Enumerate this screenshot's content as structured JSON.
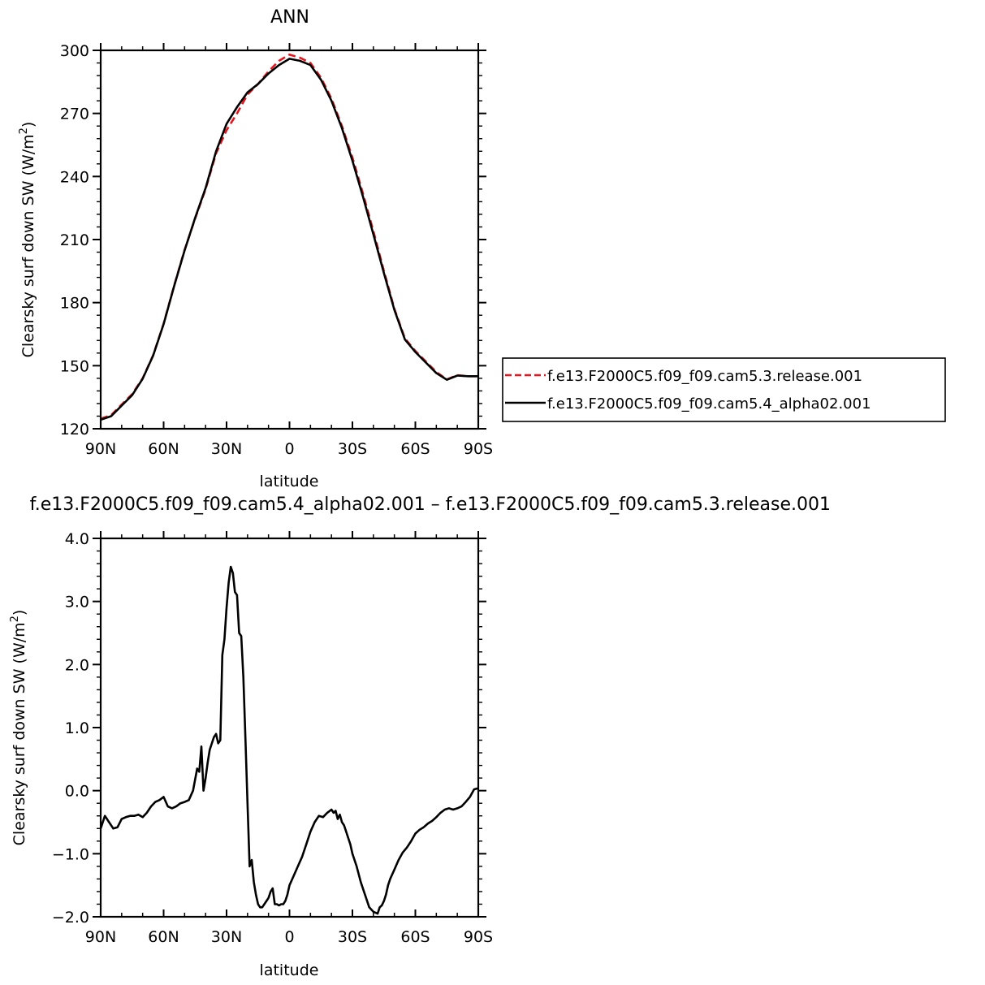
{
  "chart_data": [
    {
      "type": "line",
      "title": "ANN",
      "xlabel": "latitude",
      "ylabel": "Clearsky surf down SW (W/m²)",
      "ylabel_text": "Clearsky surf down SW (W/m",
      "ylabel_sup": "2",
      "ylabel_close": ")",
      "xlim": [
        90,
        -90
      ],
      "ylim": [
        120,
        300
      ],
      "x_ticks": [
        90,
        60,
        30,
        0,
        -30,
        -60,
        -90
      ],
      "x_tick_labels": [
        "90N",
        "60N",
        "30N",
        "0",
        "30S",
        "60S",
        "90S"
      ],
      "y_ticks": [
        120,
        150,
        180,
        210,
        240,
        270,
        300
      ],
      "y_tick_labels": [
        "120",
        "150",
        "180",
        "210",
        "240",
        "270",
        "300"
      ],
      "legend_position": "right",
      "series": [
        {
          "name": "f.e13.F2000C5.f09_f09.cam5.3.release.001",
          "color": "#e8141c",
          "dash": "dashed",
          "x": [
            90,
            85,
            80,
            75,
            70,
            65,
            60,
            55,
            50,
            45,
            40,
            35,
            30,
            25,
            20,
            15,
            10,
            5,
            0,
            -5,
            -10,
            -15,
            -20,
            -25,
            -30,
            -35,
            -40,
            -45,
            -50,
            -55,
            -60,
            -65,
            -70,
            -75,
            -80,
            -85,
            -90
          ],
          "y": [
            124.8,
            126.5,
            131.5,
            136.5,
            144,
            155,
            170,
            188,
            205,
            220,
            234,
            251,
            262,
            270,
            279,
            284,
            290,
            295,
            298,
            296.5,
            294,
            287,
            277,
            264,
            249,
            232,
            214,
            195,
            177,
            163,
            157,
            152,
            147,
            143.5,
            145.5,
            145,
            145
          ]
        },
        {
          "name": "f.e13.F2000C5.f09_f09.cam5.4_alpha02.001",
          "color": "#000000",
          "dash": "solid",
          "x": [
            90,
            85,
            80,
            75,
            70,
            65,
            60,
            55,
            50,
            45,
            40,
            35,
            30,
            25,
            20,
            15,
            10,
            5,
            0,
            -5,
            -10,
            -15,
            -20,
            -25,
            -30,
            -35,
            -40,
            -45,
            -50,
            -55,
            -60,
            -65,
            -70,
            -75,
            -80,
            -85,
            -90
          ],
          "y": [
            124.3,
            126,
            131,
            136,
            143.8,
            154.8,
            169.8,
            187.8,
            204.8,
            220.3,
            234.5,
            252,
            265,
            273,
            280,
            284,
            289,
            293,
            296,
            295,
            293,
            286,
            276,
            263,
            247.5,
            230.5,
            212.5,
            194,
            176.5,
            162.5,
            156.5,
            151.5,
            146.5,
            143.3,
            145.3,
            145,
            145
          ]
        }
      ]
    },
    {
      "type": "line",
      "title": "f.e13.F2000C5.f09_f09.cam5.4_alpha02.001  –  f.e13.F2000C5.f09_f09.cam5.3.release.001",
      "xlabel": "latitude",
      "ylabel": "Clearsky surf down SW (W/m²)",
      "ylabel_text": "Clearsky surf down SW (W/m",
      "ylabel_sup": "2",
      "ylabel_close": ")",
      "xlim": [
        90,
        -90
      ],
      "ylim": [
        -2.0,
        4.0
      ],
      "x_ticks": [
        90,
        60,
        30,
        0,
        -30,
        -60,
        -90
      ],
      "x_tick_labels": [
        "90N",
        "60N",
        "30N",
        "0",
        "30S",
        "60S",
        "90S"
      ],
      "y_ticks": [
        -2.0,
        -1.0,
        0.0,
        1.0,
        2.0,
        3.0,
        4.0
      ],
      "y_tick_labels": [
        "−2.0",
        "−1.0",
        "0.0",
        "1.0",
        "2.0",
        "3.0",
        "4.0"
      ],
      "series": [
        {
          "color": "#000000",
          "dash": "solid",
          "x": [
            90,
            88,
            86,
            84,
            82,
            80,
            78,
            76,
            74,
            72,
            70,
            68,
            66,
            64,
            62,
            60,
            58,
            56,
            54,
            52,
            50,
            48,
            46,
            44,
            43,
            42,
            41,
            40,
            39,
            38,
            37,
            36,
            35,
            34,
            33,
            32,
            31,
            30,
            29,
            28,
            27,
            26,
            25,
            24,
            23,
            22,
            21,
            20,
            19,
            18,
            17,
            16,
            15,
            14,
            13,
            12,
            11,
            10,
            9,
            8,
            7,
            6,
            5,
            4,
            3,
            2,
            1,
            0,
            -2,
            -4,
            -6,
            -8,
            -10,
            -12,
            -14,
            -16,
            -18,
            -20,
            -21,
            -22,
            -23,
            -24,
            -25,
            -26,
            -27,
            -28,
            -29,
            -30,
            -32,
            -34,
            -36,
            -38,
            -40,
            -42,
            -43,
            -44,
            -45,
            -46,
            -47,
            -48,
            -50,
            -52,
            -54,
            -56,
            -58,
            -60,
            -62,
            -64,
            -66,
            -68,
            -70,
            -72,
            -74,
            -76,
            -78,
            -80,
            -82,
            -84,
            -86,
            -88,
            -90
          ],
          "y": [
            -0.6,
            -0.4,
            -0.5,
            -0.6,
            -0.58,
            -0.45,
            -0.42,
            -0.4,
            -0.4,
            -0.38,
            -0.42,
            -0.35,
            -0.25,
            -0.18,
            -0.15,
            -0.1,
            -0.25,
            -0.28,
            -0.25,
            -0.2,
            -0.18,
            -0.15,
            0.0,
            0.35,
            0.3,
            0.7,
            0.0,
            0.2,
            0.45,
            0.65,
            0.75,
            0.85,
            0.9,
            0.75,
            0.8,
            2.15,
            2.4,
            2.9,
            3.3,
            3.55,
            3.45,
            3.15,
            3.1,
            2.5,
            2.45,
            1.8,
            0.8,
            -0.2,
            -1.2,
            -1.1,
            -1.45,
            -1.65,
            -1.8,
            -1.85,
            -1.85,
            -1.8,
            -1.75,
            -1.7,
            -1.6,
            -1.55,
            -1.8,
            -1.8,
            -1.82,
            -1.8,
            -1.8,
            -1.75,
            -1.65,
            -1.5,
            -1.35,
            -1.2,
            -1.05,
            -0.85,
            -0.65,
            -0.5,
            -0.4,
            -0.42,
            -0.35,
            -0.3,
            -0.35,
            -0.32,
            -0.45,
            -0.38,
            -0.5,
            -0.55,
            -0.65,
            -0.75,
            -0.85,
            -1.0,
            -1.2,
            -1.45,
            -1.65,
            -1.85,
            -1.92,
            -1.95,
            -1.85,
            -1.82,
            -1.75,
            -1.65,
            -1.5,
            -1.4,
            -1.25,
            -1.1,
            -0.98,
            -0.9,
            -0.8,
            -0.68,
            -0.62,
            -0.58,
            -0.52,
            -0.48,
            -0.42,
            -0.35,
            -0.3,
            -0.28,
            -0.3,
            -0.28,
            -0.25,
            -0.18,
            -0.1,
            0.02,
            0.04
          ]
        }
      ]
    }
  ]
}
